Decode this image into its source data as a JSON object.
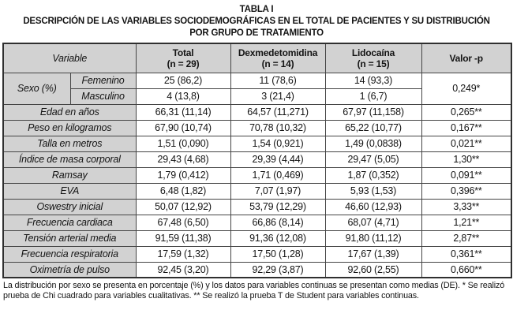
{
  "title": {
    "label": "TABLA I",
    "caption_line1": "DESCRIPCIÓN DE LAS VARIABLES SOCIODEMOGRÁFICAS EN EL TOTAL DE PACIENTES Y SU DISTRIBUCIÓN",
    "caption_line2": "POR GRUPO DE TRATAMIENTO"
  },
  "table": {
    "columns": {
      "variable": "Variable",
      "total": {
        "label": "Total",
        "sub": "(n = 29)"
      },
      "dexmedetomidina": {
        "label": "Dexmedetomidina",
        "sub": "(n = 14)"
      },
      "lidocaina": {
        "label": "Lidocaína",
        "sub": "(n = 15)"
      },
      "p": "Valor -p"
    },
    "sexo": {
      "label": "Sexo (%)",
      "p_value": "0,249*",
      "rows": [
        {
          "label": "Femenino",
          "total": "25 (86,2)",
          "dexmedetomidina": "11 (78,6)",
          "lidocaina": "14 (93,3)"
        },
        {
          "label": "Masculino",
          "total": "4 (13,8)",
          "dexmedetomidina": "3 (21,4)",
          "lidocaina": "1 (6,7)"
        }
      ]
    },
    "rows": [
      {
        "variable": "Edad en años",
        "total": "66,31 (11,14)",
        "dexmedetomidina": "64,57 (11,271)",
        "lidocaina": "67,97 (11,158)",
        "p": "0,265**"
      },
      {
        "variable": "Peso en kilogramos",
        "total": "67,90 (10,74)",
        "dexmedetomidina": "70,78 (10,32)",
        "lidocaina": "65,22 (10,77)",
        "p": "0,167**"
      },
      {
        "variable": "Talla en metros",
        "total": "1,51 (0,090)",
        "dexmedetomidina": "1,54 (0,921)",
        "lidocaina": "1,49 (0,0838)",
        "p": "0,021**"
      },
      {
        "variable": "Índice de masa corporal",
        "total": "29,43 (4,68)",
        "dexmedetomidina": "29,39 (4,44)",
        "lidocaina": "29,47 (5,05)",
        "p": "1,30**"
      },
      {
        "variable": "Ramsay",
        "total": "1,79 (0,412)",
        "dexmedetomidina": "1,71 (0,469)",
        "lidocaina": "1,87 (0,352)",
        "p": "0,091**"
      },
      {
        "variable": "EVA",
        "total": "6,48 (1,82)",
        "dexmedetomidina": "7,07 (1,97)",
        "lidocaina": "5,93 (1,53)",
        "p": "0,396**"
      },
      {
        "variable": "Oswestry inicial",
        "total": "50,07 (12,92)",
        "dexmedetomidina": "53,79 (12,29)",
        "lidocaina": "46,60 (12,93)",
        "p": "3,33**"
      },
      {
        "variable": "Frecuencia cardiaca",
        "total": "67,48 (6,50)",
        "dexmedetomidina": "66,86 (8,14)",
        "lidocaina": "68,07 (4,71)",
        "p": "1,21**"
      },
      {
        "variable": "Tensión arterial media",
        "total": "91,59 (11,38)",
        "dexmedetomidina": "91,36 (12,08)",
        "lidocaina": "91,80 (11,12)",
        "p": "2,87**"
      },
      {
        "variable": "Frecuencia respiratoria",
        "total": "17,59 (1,32)",
        "dexmedetomidina": "17,50 (1,28)",
        "lidocaina": "17,67 (1,39)",
        "p": "0,361**"
      },
      {
        "variable": "Oximetría de pulso",
        "total": "92,45 (3,20)",
        "dexmedetomidina": "92,29 (3,87)",
        "lidocaina": "92,60 (2,55)",
        "p": "0,660**"
      }
    ]
  },
  "footnote": "La distribución por sexo se presenta en porcentaje (%) y los datos para variables continuas se presentan como medias (DE). * Se realizó prueba de Chi cuadrado para variables cualitativas. ** Se realizó la prueba T de Student para variables continuas.",
  "colors": {
    "cell_gray": "#d2d2d2",
    "border": "#454545",
    "text": "#141414"
  }
}
